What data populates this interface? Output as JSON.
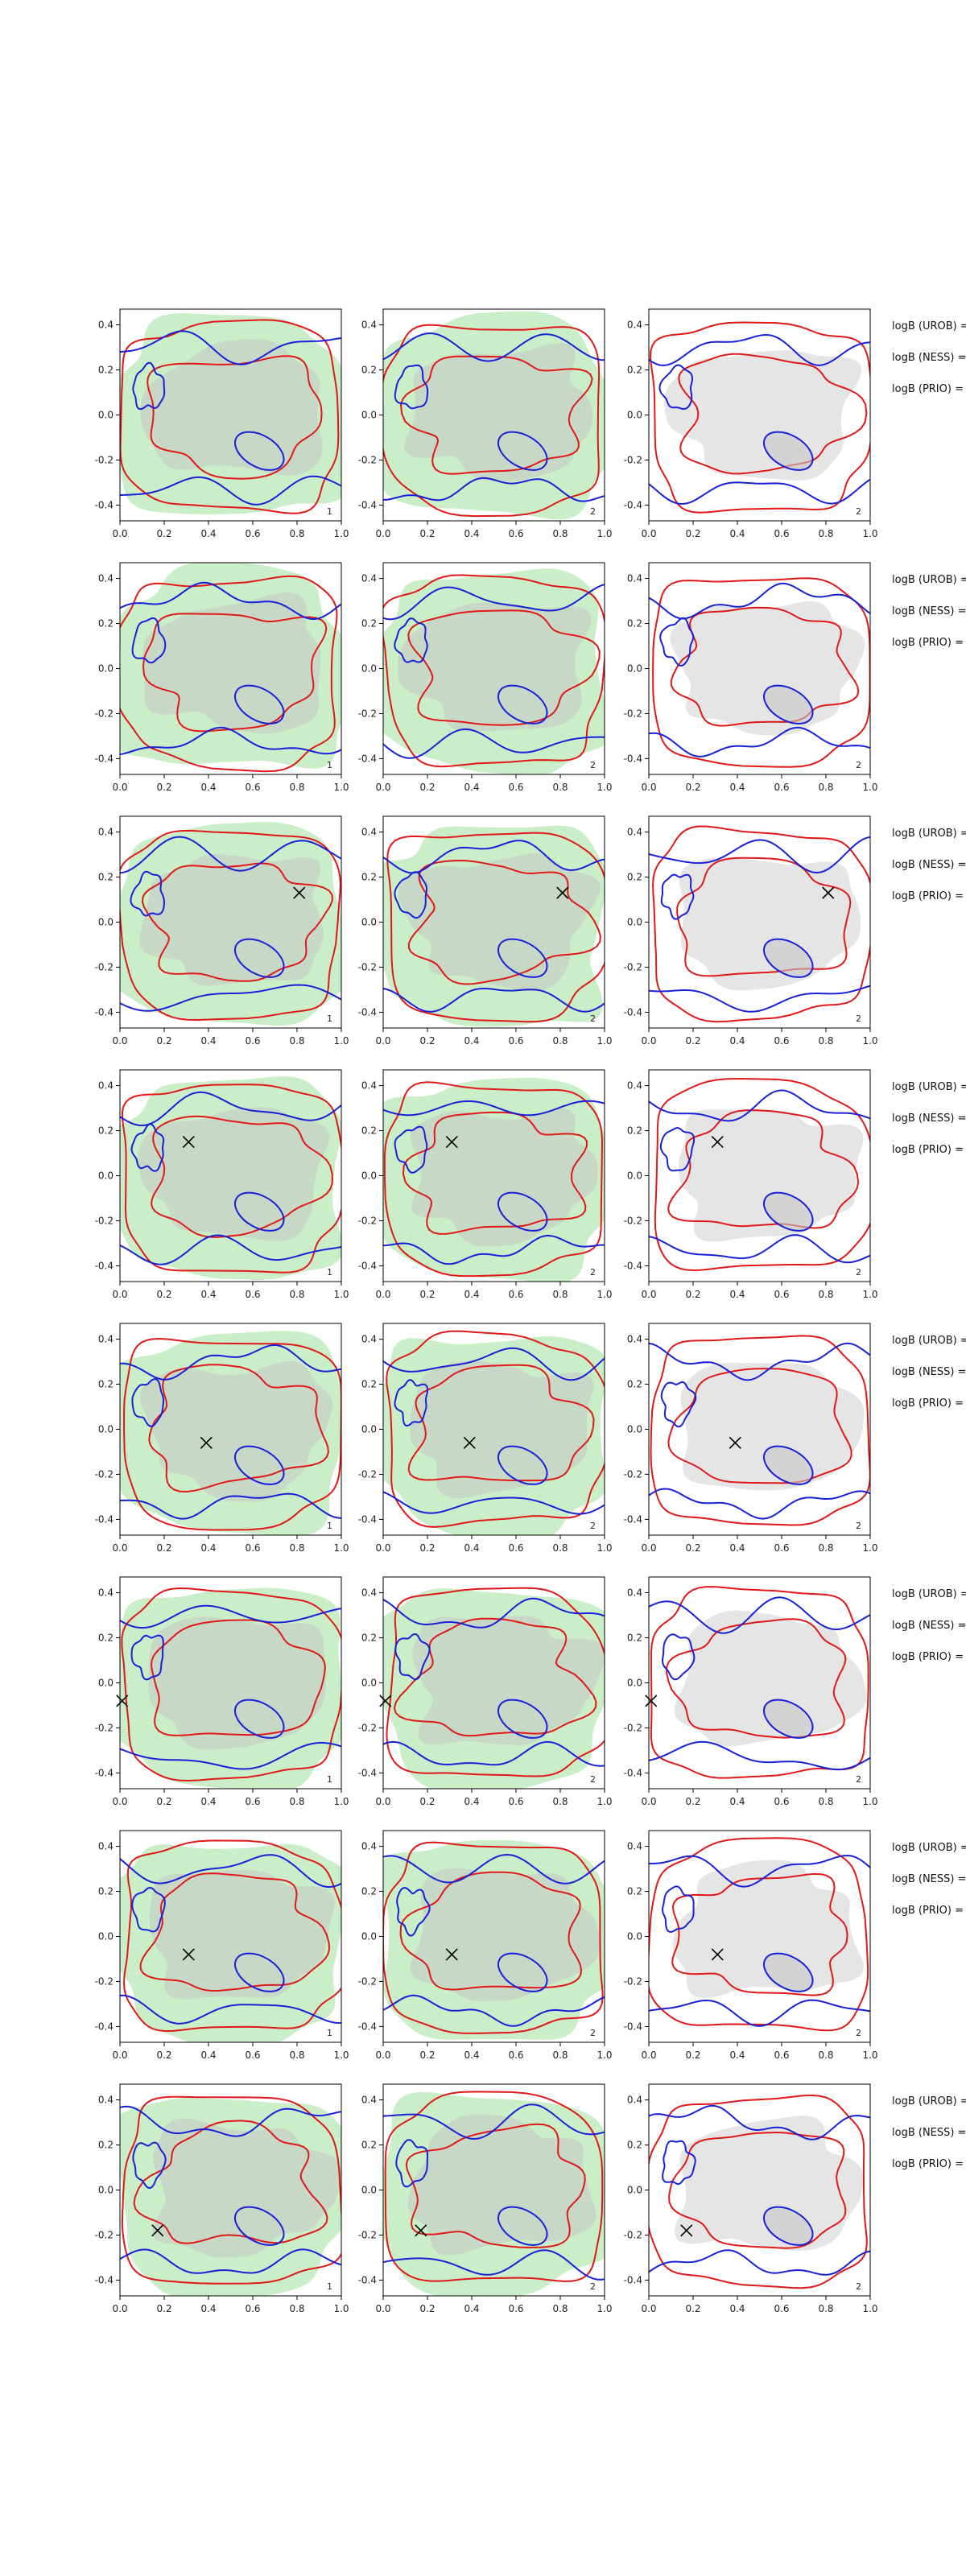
{
  "chart_data": {
    "type": "grid-of-2d-contour-maps",
    "rows": 8,
    "columns": 3,
    "xlim": [
      0,
      1
    ],
    "ylim": [
      -0.47,
      0.47
    ],
    "xticks": [
      "0.0",
      "0.2",
      "0.4",
      "0.6",
      "0.8",
      "1.0"
    ],
    "yticks": [
      "-0.4",
      "-0.2",
      "0.0",
      "0.2",
      "0.4"
    ],
    "colors": {
      "green_fill": "#b8e8b4",
      "gray_fill": "#c6c6c6",
      "red_contour": "#e01818",
      "blue_contour": "#1820d8",
      "marker": "#000000"
    },
    "panel_labels": [
      "1",
      "2",
      "2"
    ],
    "side_labels": [
      "logB (UROB) =",
      "logB (NESS) =",
      "logB (PRIO) ="
    ],
    "markers": [
      null,
      null,
      {
        "x": 0.81,
        "y": 0.13
      },
      {
        "x": 0.31,
        "y": 0.15
      },
      {
        "x": 0.39,
        "y": -0.06
      },
      {
        "x": 0.01,
        "y": -0.08
      },
      {
        "x": 0.31,
        "y": -0.08
      },
      {
        "x": 0.17,
        "y": -0.18
      }
    ],
    "blue_ellipse": {
      "cx": 0.63,
      "cy": -0.16,
      "rx": 0.12,
      "ry": 0.07,
      "angle_deg": -30
    }
  }
}
